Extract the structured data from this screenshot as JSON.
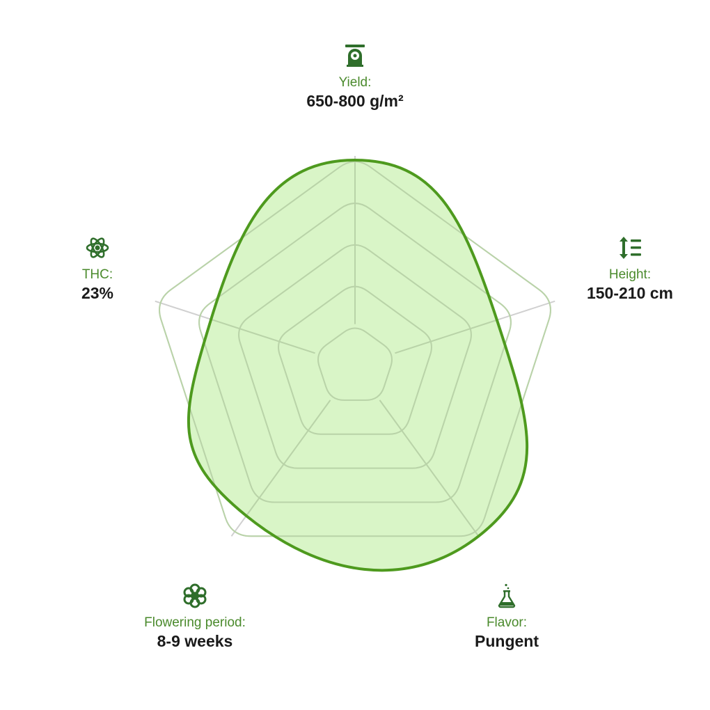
{
  "chart_data": {
    "type": "radar",
    "axes": [
      "Yield",
      "Height",
      "Flavor",
      "Flowering period",
      "THC"
    ],
    "values": [
      0.98,
      0.71,
      1.0,
      0.88,
      0.72
    ],
    "rings": 5,
    "grid": true,
    "colors": {
      "fill": "#d2f3bd",
      "stroke": "#4e9a1e",
      "grid": "#d0d0d0",
      "label": "#4a8a2c",
      "value": "#1a1a1a",
      "icon": "#2f6e2b"
    }
  },
  "stats": {
    "yield": {
      "label": "Yield:",
      "value": "650-800 g/m²",
      "icon": "scale-icon"
    },
    "height": {
      "label": "Height:",
      "value": "150-210 cm",
      "icon": "height-icon"
    },
    "flavor": {
      "label": "Flavor:",
      "value": "Pungent",
      "icon": "flask-icon"
    },
    "flowering": {
      "label": "Flowering period:",
      "value": "8-9 weeks",
      "icon": "flower-icon"
    },
    "thc": {
      "label": "THC:",
      "value": "23%",
      "icon": "atom-icon"
    }
  }
}
